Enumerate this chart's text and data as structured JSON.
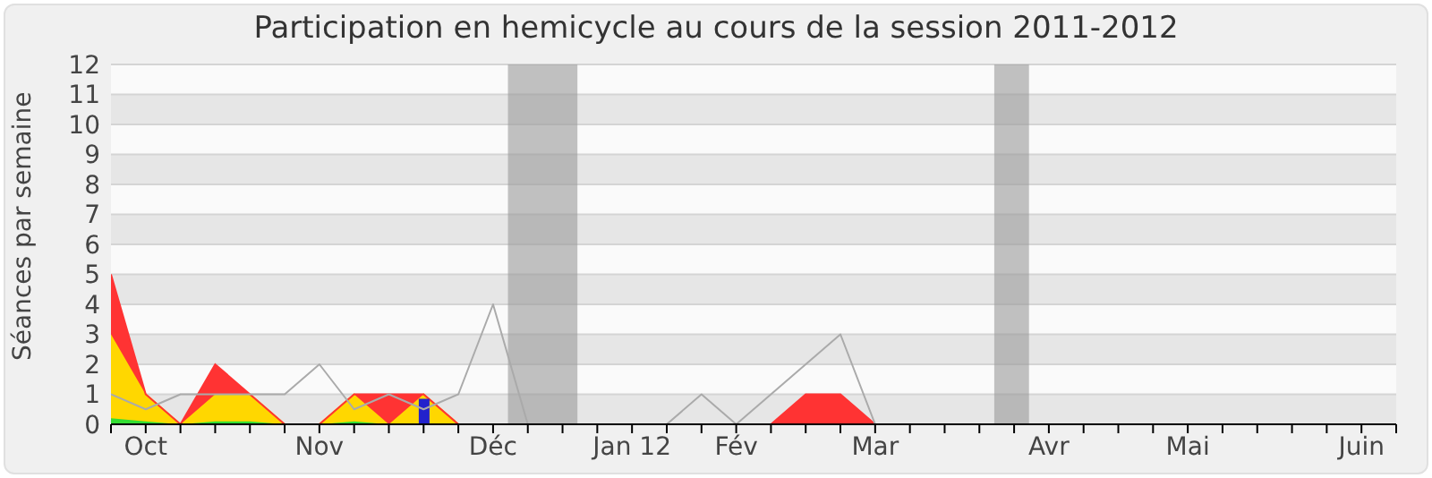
{
  "chart_data": {
    "type": "area",
    "title": "Participation en hemicycle au cours de la session 2011-2012",
    "ylabel": "Séances par semaine",
    "x": [
      "2011-10-03",
      "2011-10-10",
      "2011-10-17",
      "2011-10-24",
      "2011-10-31",
      "2011-11-07",
      "2011-11-14",
      "2011-11-21",
      "2011-11-28",
      "2011-12-05",
      "2011-12-12",
      "2011-12-19",
      "2011-12-26",
      "2012-01-02",
      "2012-01-09",
      "2012-01-16",
      "2012-01-23",
      "2012-01-30",
      "2012-02-06",
      "2012-02-13",
      "2012-02-20",
      "2012-02-27",
      "2012-03-05",
      "2012-03-12",
      "2012-03-19",
      "2012-03-26",
      "2012-04-02",
      "2012-04-09",
      "2012-04-16",
      "2012-04-23",
      "2012-04-30",
      "2012-05-07",
      "2012-05-14",
      "2012-05-21",
      "2012-05-28",
      "2012-06-04",
      "2012-06-11",
      "2012-06-18"
    ],
    "stacked": true,
    "grid": "y",
    "legend": false,
    "series": [
      {
        "color": "#33dd33",
        "values": [
          0.2,
          0.1,
          0,
          0.1,
          0.1,
          0,
          0,
          0.1,
          0,
          0,
          0,
          0,
          0,
          0,
          0,
          0,
          0,
          0,
          0,
          0,
          0,
          0,
          0,
          0,
          0,
          0,
          0,
          0,
          0,
          0,
          0,
          0,
          0,
          0,
          0,
          0,
          0,
          0
        ]
      },
      {
        "color": "#ffd700",
        "values": [
          2.8,
          0.9,
          0,
          0.9,
          0.9,
          0,
          0,
          0.9,
          0,
          1,
          0,
          0,
          0,
          0,
          0,
          0,
          0,
          0,
          0,
          0,
          0,
          0,
          0,
          0,
          0,
          0,
          0,
          0,
          0,
          0,
          0,
          0,
          0,
          0,
          0,
          0,
          0,
          0
        ]
      },
      {
        "color": "#ff3333",
        "values": [
          2,
          0,
          0,
          1,
          0,
          0,
          0,
          0,
          1,
          0,
          0,
          0,
          0,
          0,
          0,
          0,
          0,
          0,
          0,
          0,
          1,
          1,
          0,
          0,
          0,
          0,
          0,
          0,
          0,
          0,
          0,
          0,
          0,
          0,
          0,
          0,
          0,
          0
        ]
      },
      {
        "type": "line",
        "color": "#aaaaaa",
        "values": [
          1,
          0.5,
          1,
          1,
          1,
          1,
          2,
          0.5,
          1,
          0.5,
          1,
          4,
          0,
          0,
          0,
          0,
          0,
          1,
          0,
          1,
          2,
          3,
          0,
          0,
          0,
          0,
          0,
          0,
          0,
          0,
          0,
          0,
          0,
          0,
          0,
          0,
          0,
          0
        ]
      },
      {
        "type": "bar",
        "color": "#2222cc",
        "values": [
          null,
          null,
          null,
          null,
          null,
          null,
          null,
          null,
          null,
          0.85,
          null,
          null,
          null,
          null,
          null,
          null,
          null,
          null,
          null,
          null,
          null,
          null,
          null,
          null,
          null,
          null,
          null,
          null,
          null,
          null,
          null,
          null,
          null,
          null,
          null,
          null,
          null,
          null
        ]
      }
    ],
    "xlim": [
      "2011-10-03",
      "2012-06-18"
    ],
    "xticks": [
      {
        "value": "2011-10-03",
        "label": null
      },
      {
        "value": "2011-10-10",
        "label": "Oct"
      },
      {
        "value": "2011-10-17",
        "label": null
      },
      {
        "value": "2011-10-24",
        "label": null
      },
      {
        "value": "2011-10-31",
        "label": null
      },
      {
        "value": "2011-11-07",
        "label": null
      },
      {
        "value": "2011-11-14",
        "label": "Nov"
      },
      {
        "value": "2011-11-21",
        "label": null
      },
      {
        "value": "2011-11-28",
        "label": null
      },
      {
        "value": "2011-12-05",
        "label": null
      },
      {
        "value": "2011-12-12",
        "label": null
      },
      {
        "value": "2011-12-19",
        "label": "Déc"
      },
      {
        "value": "2011-12-26",
        "label": null
      },
      {
        "value": "2012-01-02",
        "label": null
      },
      {
        "value": "2012-01-09",
        "label": null
      },
      {
        "value": "2012-01-16",
        "label": "Jan 12"
      },
      {
        "value": "2012-01-23",
        "label": null
      },
      {
        "value": "2012-01-30",
        "label": null
      },
      {
        "value": "2012-02-06",
        "label": "Fév"
      },
      {
        "value": "2012-02-13",
        "label": null
      },
      {
        "value": "2012-02-20",
        "label": null
      },
      {
        "value": "2012-02-27",
        "label": null
      },
      {
        "value": "2012-03-05",
        "label": "Mar"
      },
      {
        "value": "2012-03-12",
        "label": null
      },
      {
        "value": "2012-03-19",
        "label": null
      },
      {
        "value": "2012-03-26",
        "label": null
      },
      {
        "value": "2012-04-02",
        "label": null
      },
      {
        "value": "2012-04-09",
        "label": "Avr"
      },
      {
        "value": "2012-04-16",
        "label": null
      },
      {
        "value": "2012-04-23",
        "label": null
      },
      {
        "value": "2012-04-30",
        "label": null
      },
      {
        "value": "2012-05-07",
        "label": "Mai"
      },
      {
        "value": "2012-05-14",
        "label": null
      },
      {
        "value": "2012-05-21",
        "label": null
      },
      {
        "value": "2012-05-28",
        "label": null
      },
      {
        "value": "2012-06-04",
        "label": null
      },
      {
        "value": "2012-06-11",
        "label": "Juin"
      },
      {
        "value": "2012-06-18",
        "label": null
      }
    ],
    "ylim": [
      0,
      12
    ],
    "yticks": [
      0,
      1,
      2,
      3,
      4,
      5,
      6,
      7,
      8,
      9,
      10,
      11,
      12
    ],
    "bands": [
      {
        "axis": "x",
        "from": "2011-12-22",
        "to": "2012-01-05",
        "color": "#999999"
      },
      {
        "axis": "x",
        "from": "2012-03-29",
        "to": "2012-04-05",
        "color": "#999999"
      }
    ]
  }
}
